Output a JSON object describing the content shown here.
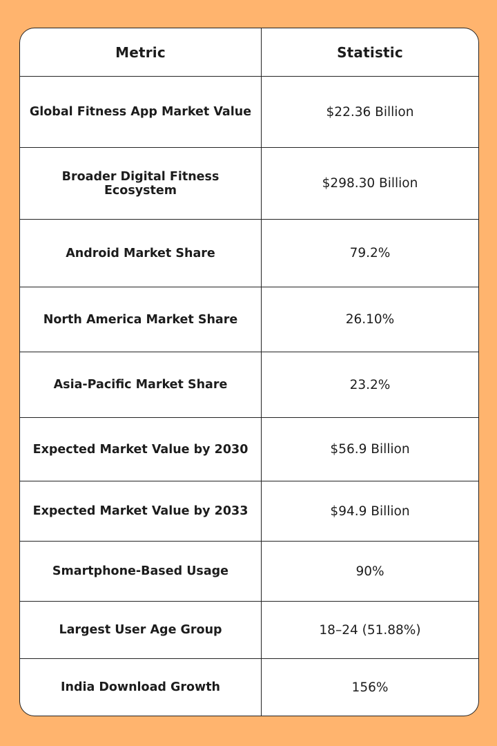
{
  "table": {
    "headers": {
      "metric": "Metric",
      "statistic": "Statistic"
    },
    "rows": [
      {
        "metric": "Global Fitness App Market Value",
        "statistic": "$22.36 Billion"
      },
      {
        "metric": "Broader Digital Fitness Ecosystem",
        "statistic": "$298.30 Billion"
      },
      {
        "metric": "Android Market Share",
        "statistic": "79.2%"
      },
      {
        "metric": "North America Market Share",
        "statistic": "26.10%"
      },
      {
        "metric": "Asia-Pacific Market Share",
        "statistic": "23.2%"
      },
      {
        "metric": "Expected Market Value by 2030",
        "statistic": "$56.9 Billion"
      },
      {
        "metric": "Expected Market Value by 2033",
        "statistic": "$94.9 Billion"
      },
      {
        "metric": "Smartphone-Based Usage",
        "statistic": "90%"
      },
      {
        "metric": "Largest User Age Group",
        "statistic": "18–24 (51.88%)"
      },
      {
        "metric": "India Download Growth",
        "statistic": "156%"
      }
    ]
  },
  "colors": {
    "background": "#FFB46E",
    "card": "#FFFFFF",
    "border": "#222222",
    "text": "#1C1C1C"
  }
}
